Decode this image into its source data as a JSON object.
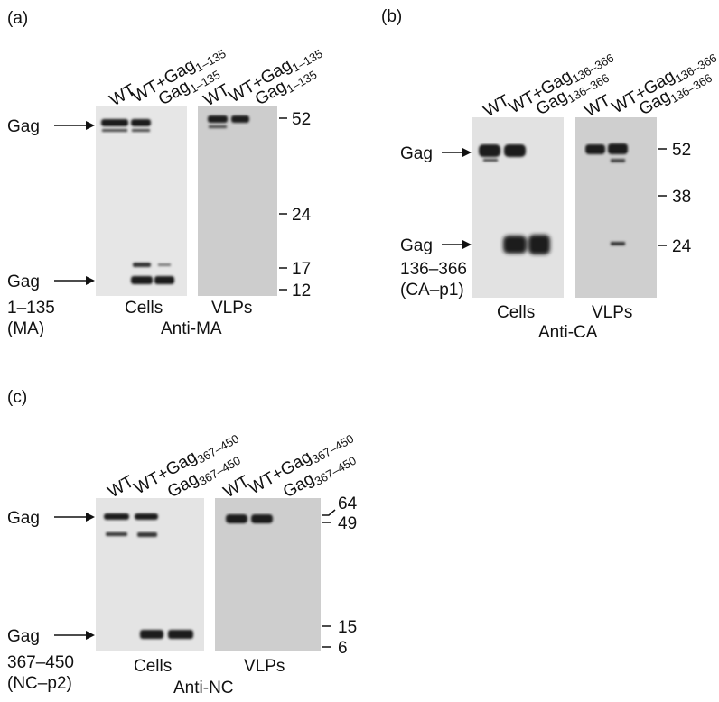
{
  "colors": {
    "blot_light": "#e6e6e6",
    "blot_mid": "#d5d5d5",
    "blot_dark": "#c4c4c4",
    "band": "#1a1a1a",
    "text": "#111111"
  },
  "icons": [
    "right-arrow-icon"
  ],
  "panels": [
    {
      "id": "a",
      "tag": "(a)",
      "lanes": [
        {
          "main": "WT",
          "sub": ""
        },
        {
          "main": "WT+Gag",
          "sub": "1–135"
        },
        {
          "main": "Gag",
          "sub": "1–135"
        },
        {
          "main": "WT",
          "sub": ""
        },
        {
          "main": "WT+Gag",
          "sub": "1–135"
        },
        {
          "main": "Gag",
          "sub": "1–135"
        }
      ],
      "arrow_top": "Gag",
      "arrow_bottom": "Gag",
      "bottom_label_lines": [
        "1–135",
        "(MA)"
      ],
      "blot_labels": [
        "Cells",
        "VLPs"
      ],
      "antibody": "Anti-MA",
      "markers": [
        "52",
        "24",
        "17",
        "12"
      ]
    },
    {
      "id": "b",
      "tag": "(b)",
      "lanes": [
        {
          "main": "WT",
          "sub": ""
        },
        {
          "main": "WT+Gag",
          "sub": "136–366"
        },
        {
          "main": "Gag",
          "sub": "136–366"
        },
        {
          "main": "WT",
          "sub": ""
        },
        {
          "main": "WT+Gag",
          "sub": "136–366"
        },
        {
          "main": "Gag",
          "sub": "136–366"
        }
      ],
      "arrow_top": "Gag",
      "arrow_bottom": "Gag",
      "bottom_label_lines": [
        "136–366",
        "(CA–p1)"
      ],
      "blot_labels": [
        "Cells",
        "VLPs"
      ],
      "antibody": "Anti-CA",
      "markers": [
        "52",
        "38",
        "24"
      ]
    },
    {
      "id": "c",
      "tag": "(c)",
      "lanes": [
        {
          "main": "WT",
          "sub": ""
        },
        {
          "main": "WT+Gag",
          "sub": "367–450"
        },
        {
          "main": "Gag",
          "sub": "367–450"
        },
        {
          "main": "WT",
          "sub": ""
        },
        {
          "main": "WT+Gag",
          "sub": "367–450"
        },
        {
          "main": "Gag",
          "sub": "367–450"
        }
      ],
      "arrow_top": "Gag",
      "arrow_bottom": "Gag",
      "bottom_label_lines": [
        "367–450",
        "(NC–p2)"
      ],
      "blot_labels": [
        "Cells",
        "VLPs"
      ],
      "antibody": "Anti-NC",
      "markers": [
        "64",
        "49",
        "15",
        "6"
      ]
    }
  ]
}
